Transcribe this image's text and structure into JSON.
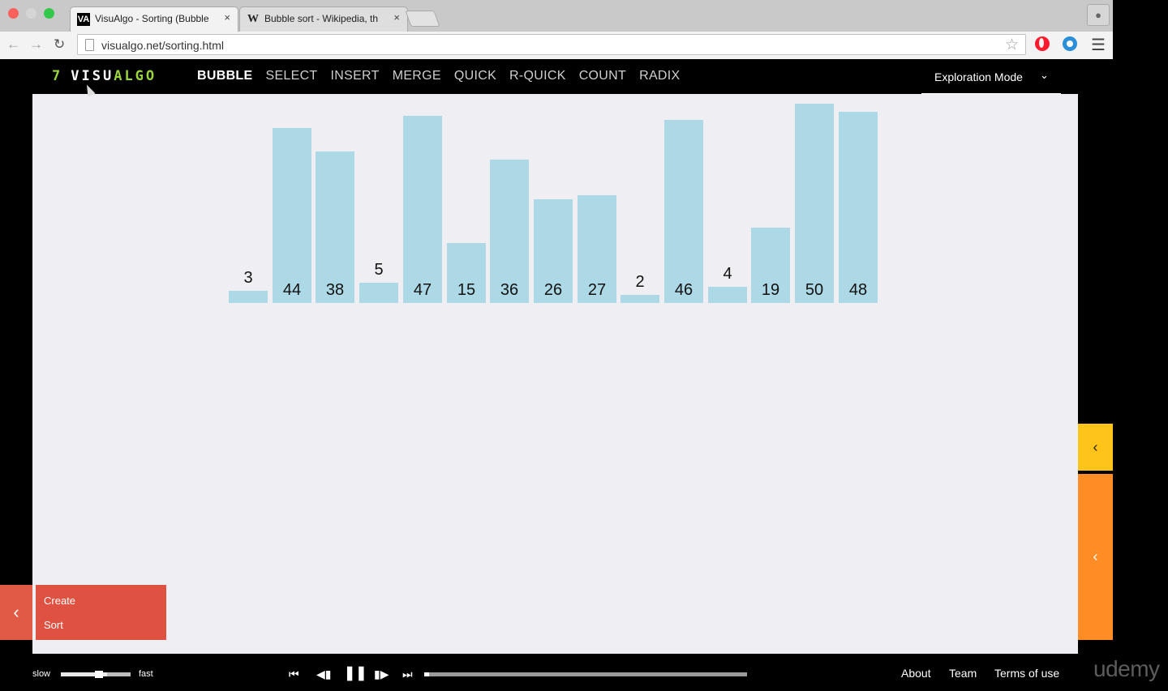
{
  "browser": {
    "tabs": [
      {
        "favicon": "VA",
        "title": "VisuAlgo - Sorting (Bubble",
        "close": "×"
      },
      {
        "favicon": "W",
        "title": "Bubble sort - Wikipedia, th",
        "close": "×"
      }
    ],
    "url": "visualgo.net/sorting.html",
    "icons": {
      "back": "arrow-left-icon",
      "forward": "arrow-right-icon",
      "reload": "reload-icon",
      "star": "star-icon",
      "menu": "hamburger-icon"
    }
  },
  "header": {
    "logo_num": "7",
    "logo_part1": "VISU",
    "logo_part2": "ALGO",
    "nav": [
      "BUBBLE",
      "SELECT",
      "INSERT",
      "MERGE",
      "QUICK",
      "R-QUICK",
      "COUNT",
      "RADIX"
    ],
    "active_nav": "BUBBLE",
    "mode_label": "Exploration Mode"
  },
  "array": {
    "values": [
      3,
      44,
      38,
      5,
      47,
      15,
      36,
      26,
      27,
      2,
      46,
      4,
      19,
      50,
      48
    ],
    "max_value": 50,
    "bar_color": "#add8e6"
  },
  "actions": {
    "items": [
      "Create",
      "Sort"
    ]
  },
  "footer": {
    "speed_slow": "slow",
    "speed_fast": "fast",
    "speed_level": 0.66,
    "progress": 0.01,
    "links": [
      "About",
      "Team",
      "Terms of use"
    ]
  },
  "watermark": "udemy",
  "colors": {
    "accent_green": "#9bd33b",
    "panel_red": "#df5141",
    "panel_yellow": "#ffc41a",
    "panel_orange": "#ff8c24"
  }
}
